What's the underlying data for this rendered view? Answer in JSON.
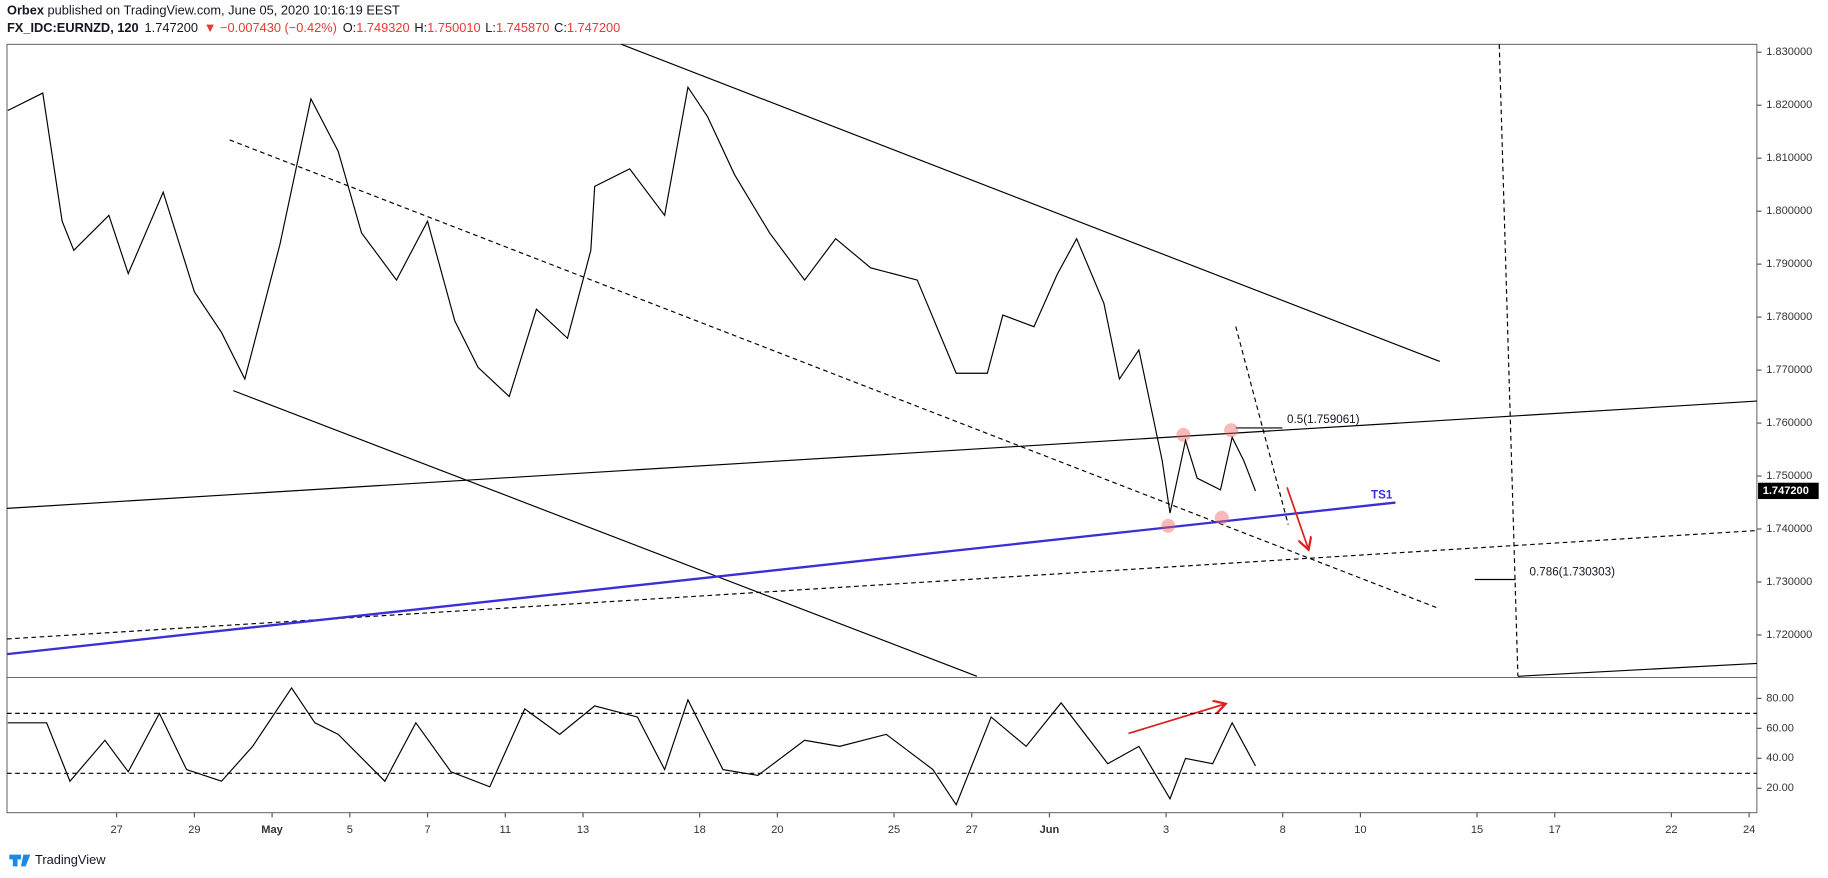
{
  "header": {
    "publisher": "Orbex",
    "published": "published on TradingView.com, June 05, 2020 10:16:19 EEST",
    "symbol": "FX_IDC:EURNZD, 120",
    "close": "1.747200",
    "change": "▼ −0.007430 (−0.42%)",
    "ohlc": [
      {
        "label": "O:",
        "value": "1.749320"
      },
      {
        "label": "H:",
        "value": "1.750010"
      },
      {
        "label": "L:",
        "value": "1.745870"
      },
      {
        "label": "C:",
        "value": "1.747200"
      }
    ]
  },
  "footer": "TradingView",
  "chart_data": [
    {
      "type": "line",
      "color": "#000000",
      "x": [
        -2.8,
        -1.9,
        -1.4,
        -1.1,
        -0.2,
        0.3,
        1.2,
        2.0,
        2.7,
        3.3,
        4.2,
        5.0,
        5.7,
        6.3,
        7.2,
        8.0,
        8.7,
        9.3,
        10.1,
        10.8,
        11.6,
        12.2,
        12.3,
        13.2,
        14.1,
        14.7,
        15.2,
        15.9,
        16.8,
        17.7,
        18.5,
        19.4,
        20.6,
        21.6,
        22.4,
        22.8,
        23.6,
        24.2,
        24.7,
        25.4,
        25.8,
        26.3,
        26.9,
        27.1,
        27.5,
        27.8,
        28.4,
        28.7,
        29.0,
        29.3
      ],
      "values": [
        1.819,
        1.8223,
        1.7981,
        1.7926,
        1.7992,
        1.7882,
        1.8036,
        1.7848,
        1.7771,
        1.7683,
        1.7937,
        1.8212,
        1.8113,
        1.7959,
        1.787,
        1.7981,
        1.7793,
        1.7705,
        1.765,
        1.7815,
        1.776,
        1.7926,
        1.8047,
        1.808,
        1.7992,
        1.8234,
        1.8179,
        1.8069,
        1.7959,
        1.787,
        1.7948,
        1.7893,
        1.787,
        1.7694,
        1.7694,
        1.7804,
        1.7782,
        1.7881,
        1.7948,
        1.7826,
        1.7683,
        1.7738,
        1.7529,
        1.743,
        1.7567,
        1.7496,
        1.7474,
        1.7573,
        1.7529,
        1.7472
      ],
      "last_label": "1.747200",
      "xlim": [
        -2.82,
        42.2
      ],
      "ylim": [
        1.7122,
        1.8315
      ],
      "yticks": [
        {
          "value": 1.72,
          "label": "1.720000"
        },
        {
          "value": 1.73,
          "label": "1.730000"
        },
        {
          "value": 1.74,
          "label": "1.740000"
        },
        {
          "value": 1.75,
          "label": "1.750000"
        },
        {
          "value": 1.76,
          "label": "1.760000"
        },
        {
          "value": 1.77,
          "label": "1.770000"
        },
        {
          "value": 1.78,
          "label": "1.780000"
        },
        {
          "value": 1.79,
          "label": "1.790000"
        },
        {
          "value": 1.8,
          "label": "1.800000"
        },
        {
          "value": 1.81,
          "label": "1.810000"
        },
        {
          "value": 1.82,
          "label": "1.820000"
        },
        {
          "value": 1.83,
          "label": "1.830000"
        }
      ],
      "annotations": [
        "0.5(1.759061)",
        "0.786(1.730303)",
        "TS1"
      ]
    },
    {
      "type": "line",
      "color": "#000000",
      "x": [
        -2.8,
        -1.8,
        -1.2,
        -0.3,
        0.3,
        1.1,
        1.8,
        2.7,
        3.5,
        4.5,
        5.1,
        5.7,
        6.9,
        7.7,
        8.6,
        9.6,
        10.5,
        11.4,
        12.3,
        13.4,
        14.1,
        14.7,
        15.6,
        16.5,
        17.7,
        18.6,
        19.8,
        21.0,
        21.6,
        22.5,
        23.4,
        24.3,
        25.5,
        26.3,
        27.1,
        27.5,
        28.2,
        28.7,
        29.3
      ],
      "values": [
        63.7,
        63.7,
        24.7,
        52,
        31,
        70,
        32.5,
        24.7,
        48,
        87,
        63.7,
        56,
        24.7,
        63.7,
        31,
        21,
        73,
        56,
        75,
        67.5,
        32.5,
        79,
        32.5,
        28.6,
        52,
        48,
        56,
        32.5,
        9,
        67.5,
        48,
        77,
        36.4,
        48,
        13,
        40,
        36.4,
        63.7,
        35
      ],
      "xlim": [
        -2.82,
        42.2
      ],
      "ylim": [
        3.7,
        93.2
      ],
      "yticks": [
        {
          "value": 20,
          "label": "20.00"
        },
        {
          "value": 40,
          "label": "40.00"
        },
        {
          "value": 60,
          "label": "60.00"
        },
        {
          "value": 80,
          "label": "80.00"
        }
      ],
      "bands": [
        30,
        70
      ],
      "xticks": [
        {
          "value": 0,
          "label": "27"
        },
        {
          "value": 2,
          "label": "29"
        },
        {
          "value": 4,
          "label": "May"
        },
        {
          "value": 6,
          "label": "5"
        },
        {
          "value": 8,
          "label": "7"
        },
        {
          "value": 10,
          "label": "11"
        },
        {
          "value": 12,
          "label": "13"
        },
        {
          "value": 15,
          "label": "18"
        },
        {
          "value": 17,
          "label": "20"
        },
        {
          "value": 20,
          "label": "25"
        },
        {
          "value": 22,
          "label": "27"
        },
        {
          "value": 24,
          "label": "Jun"
        },
        {
          "value": 27,
          "label": "3"
        },
        {
          "value": 30,
          "label": "8"
        },
        {
          "value": 32,
          "label": "10"
        },
        {
          "value": 35,
          "label": "15"
        },
        {
          "value": 37,
          "label": "17"
        },
        {
          "value": 40,
          "label": "22"
        },
        {
          "value": 42,
          "label": "24"
        }
      ]
    }
  ]
}
